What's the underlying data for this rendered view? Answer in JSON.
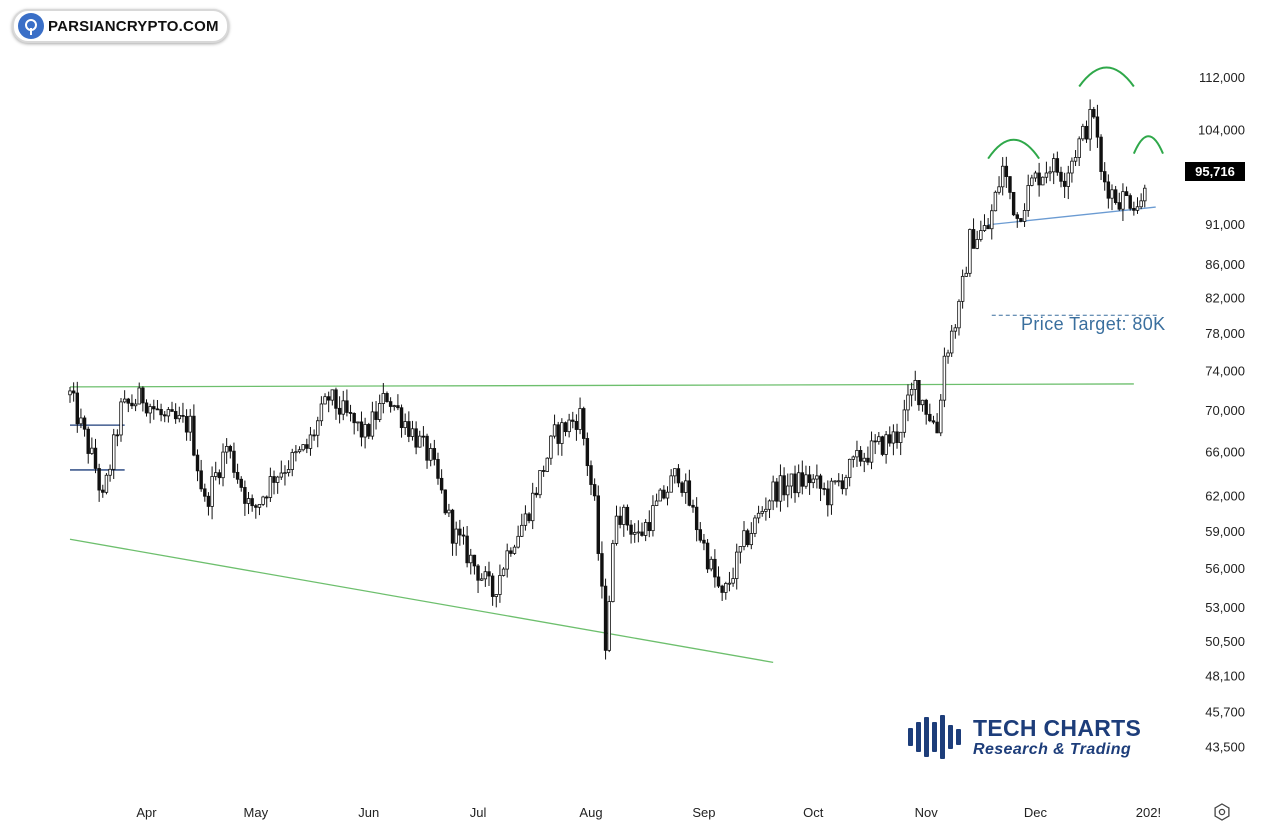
{
  "watermark": {
    "site": "PARSIANCRYPTO.COM",
    "icon": "tree-logo-icon"
  },
  "brand": {
    "title": "TECH CHARTS",
    "subtitle": "Research & Trading",
    "icon": "candle-bars-icon"
  },
  "price_badge": {
    "value": "95,716"
  },
  "target": {
    "label": "Price Target: 80K",
    "value": 80000
  },
  "chart_data": {
    "type": "candlestick",
    "title": "",
    "xlabel": "",
    "ylabel": "",
    "scale": "log",
    "ylim": [
      41500,
      118000
    ],
    "y_ticks": [
      {
        "v": 112000,
        "label": "112,000"
      },
      {
        "v": 104000,
        "label": "104,000"
      },
      {
        "v": 91000,
        "label": "91,000"
      },
      {
        "v": 86000,
        "label": "86,000"
      },
      {
        "v": 82000,
        "label": "82,000"
      },
      {
        "v": 78000,
        "label": "78,000"
      },
      {
        "v": 74000,
        "label": "74,000"
      },
      {
        "v": 70000,
        "label": "70,000"
      },
      {
        "v": 66000,
        "label": "66,000"
      },
      {
        "v": 62000,
        "label": "62,000"
      },
      {
        "v": 59000,
        "label": "59,000"
      },
      {
        "v": 56000,
        "label": "56,000"
      },
      {
        "v": 53000,
        "label": "53,000"
      },
      {
        "v": 50500,
        "label": "50,500"
      },
      {
        "v": 48100,
        "label": "48,100"
      },
      {
        "v": 45700,
        "label": "45,700"
      },
      {
        "v": 43500,
        "label": "43,500"
      }
    ],
    "x_ticks": [
      {
        "date": "2024-04-01",
        "label": "Apr"
      },
      {
        "date": "2024-05-01",
        "label": "May"
      },
      {
        "date": "2024-06-01",
        "label": "Jun"
      },
      {
        "date": "2024-07-01",
        "label": "Jul"
      },
      {
        "date": "2024-08-01",
        "label": "Aug"
      },
      {
        "date": "2024-09-01",
        "label": "Sep"
      },
      {
        "date": "2024-10-01",
        "label": "Oct"
      },
      {
        "date": "2024-11-01",
        "label": "Nov"
      },
      {
        "date": "2024-12-01",
        "label": "Dec"
      },
      {
        "date": "2025-01-01",
        "label": "202!"
      }
    ],
    "x_range": [
      "2024-03-11",
      "2025-01-05"
    ],
    "price_path": [
      [
        "2024-03-11",
        71500
      ],
      [
        "2024-03-18",
        64500
      ],
      [
        "2024-03-20",
        61500
      ],
      [
        "2024-03-25",
        70000
      ],
      [
        "2024-03-31",
        71300
      ],
      [
        "2024-04-06",
        69000
      ],
      [
        "2024-04-13",
        68500
      ],
      [
        "2024-04-17",
        61300
      ],
      [
        "2024-04-23",
        66500
      ],
      [
        "2024-04-30",
        60500
      ],
      [
        "2024-05-06",
        63800
      ],
      [
        "2024-05-15",
        66300
      ],
      [
        "2024-05-21",
        71200
      ],
      [
        "2024-05-31",
        67500
      ],
      [
        "2024-06-06",
        71500
      ],
      [
        "2024-06-18",
        65300
      ],
      [
        "2024-06-24",
        59000
      ],
      [
        "2024-07-05",
        54000
      ],
      [
        "2024-07-10",
        58000
      ],
      [
        "2024-07-14",
        60000
      ],
      [
        "2024-07-22",
        67500
      ],
      [
        "2024-07-29",
        69500
      ],
      [
        "2024-08-02",
        61000
      ],
      [
        "2024-08-05",
        50500
      ],
      [
        "2024-08-08",
        61000
      ],
      [
        "2024-08-14",
        58500
      ],
      [
        "2024-08-25",
        64200
      ],
      [
        "2024-09-06",
        53500
      ],
      [
        "2024-09-12",
        58000
      ],
      [
        "2024-09-20",
        62500
      ],
      [
        "2024-09-30",
        63500
      ],
      [
        "2024-10-05",
        62000
      ],
      [
        "2024-10-14",
        65500
      ],
      [
        "2024-10-24",
        67500
      ],
      [
        "2024-10-29",
        72500
      ],
      [
        "2024-11-04",
        68000
      ],
      [
        "2024-11-06",
        75500
      ],
      [
        "2024-11-10",
        80500
      ],
      [
        "2024-11-13",
        89000
      ],
      [
        "2024-11-18",
        90500
      ],
      [
        "2024-11-22",
        98500
      ],
      [
        "2024-11-26",
        91800
      ],
      [
        "2024-11-30",
        96500
      ],
      [
        "2024-12-05",
        99000
      ],
      [
        "2024-12-09",
        97500
      ],
      [
        "2024-12-12",
        101000
      ],
      [
        "2024-12-17",
        106500
      ],
      [
        "2024-12-19",
        97500
      ],
      [
        "2024-12-23",
        94500
      ],
      [
        "2024-12-27",
        94300
      ],
      [
        "2024-12-30",
        93500
      ],
      [
        "2024-12-31",
        95716
      ]
    ],
    "trendlines": [
      {
        "name": "resistance",
        "color": "#6dbf6d",
        "from": [
          "2024-03-11",
          72300
        ],
        "to": [
          "2024-12-28",
          72600
        ]
      },
      {
        "name": "support",
        "color": "#6dbf6d",
        "from": [
          "2024-03-11",
          58300
        ],
        "to": [
          "2024-09-20",
          49000
        ]
      },
      {
        "name": "neckline",
        "color": "#6b9bd2",
        "from": [
          "2024-11-18",
          90900
        ],
        "to": [
          "2025-01-03",
          93200
        ]
      },
      {
        "name": "range-top",
        "color": "#1d3d7a",
        "from": [
          "2024-03-11",
          68500
        ],
        "to": [
          "2024-03-26",
          68500
        ]
      },
      {
        "name": "range-bottom",
        "color": "#1d3d7a",
        "from": [
          "2024-03-11",
          64300
        ],
        "to": [
          "2024-03-26",
          64300
        ]
      }
    ],
    "arcs": [
      {
        "name": "left-shoulder",
        "color": "#2fa84a",
        "from": [
          "2024-11-18",
          99800
        ],
        "to": [
          "2024-12-02",
          99800
        ],
        "peak": 102500
      },
      {
        "name": "head",
        "color": "#2fa84a",
        "from": [
          "2024-12-13",
          110500
        ],
        "to": [
          "2024-12-28",
          110500
        ],
        "peak": 113500
      },
      {
        "name": "right-shoulder",
        "color": "#2fa84a",
        "from": [
          "2024-12-28",
          100500
        ],
        "to": [
          "2025-01-05",
          100500
        ],
        "peak": 103000
      }
    ],
    "target_line": {
      "value": 80000,
      "from": "2024-11-19",
      "to": "2025-01-04",
      "color": "#3a6f9e"
    },
    "last_price": 95716
  }
}
